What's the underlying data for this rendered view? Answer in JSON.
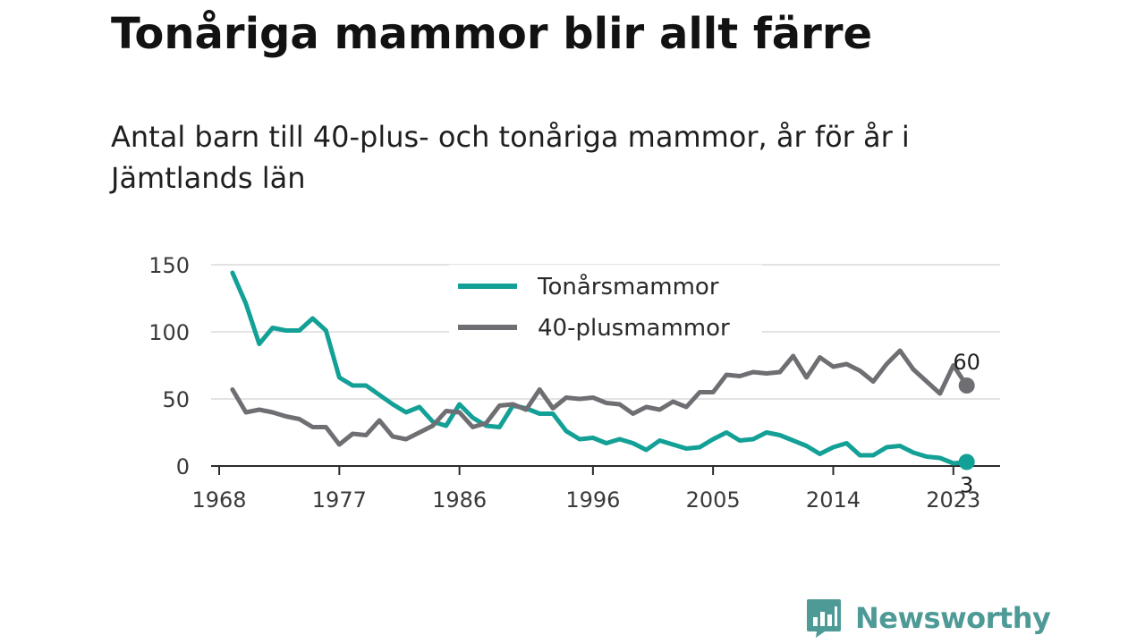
{
  "header": {
    "title": "Tonåriga mammor blir allt färre",
    "subtitle": "Antal barn till 40-plus- och tonåriga mammor, år för år i Jämtlands län"
  },
  "brand": {
    "name": "Newsworthy",
    "icon": "newsworthy-logo-icon",
    "color": "#4e9a96"
  },
  "chart_data": {
    "type": "line",
    "x": [
      1969,
      1970,
      1971,
      1972,
      1973,
      1974,
      1975,
      1976,
      1977,
      1978,
      1979,
      1980,
      1981,
      1982,
      1983,
      1984,
      1985,
      1986,
      1987,
      1988,
      1989,
      1990,
      1991,
      1992,
      1993,
      1994,
      1995,
      1996,
      1997,
      1998,
      1999,
      2000,
      2001,
      2002,
      2003,
      2004,
      2005,
      2006,
      2007,
      2008,
      2009,
      2010,
      2011,
      2012,
      2013,
      2014,
      2015,
      2016,
      2017,
      2018,
      2019,
      2020,
      2021,
      2022,
      2023,
      2024
    ],
    "series": [
      {
        "name": "Tonårsmammor",
        "color": "#13a096",
        "values": [
          144,
          121,
          91,
          103,
          101,
          101,
          110,
          101,
          66,
          60,
          60,
          53,
          46,
          40,
          44,
          33,
          30,
          46,
          36,
          30,
          29,
          45,
          43,
          39,
          39,
          26,
          20,
          21,
          17,
          20,
          17,
          12,
          19,
          16,
          13,
          14,
          20,
          25,
          19,
          20,
          25,
          23,
          19,
          15,
          9,
          14,
          17,
          8,
          8,
          14,
          15,
          10,
          7,
          6,
          2,
          3
        ]
      },
      {
        "name": "40-plusmammor",
        "color": "#6f6e73",
        "values": [
          57,
          40,
          42,
          40,
          37,
          35,
          29,
          29,
          16,
          24,
          23,
          34,
          22,
          20,
          25,
          30,
          41,
          40,
          29,
          32,
          45,
          46,
          42,
          57,
          43,
          51,
          50,
          51,
          47,
          46,
          39,
          44,
          42,
          48,
          44,
          55,
          55,
          68,
          67,
          70,
          69,
          70,
          82,
          66,
          81,
          74,
          76,
          71,
          63,
          76,
          86,
          72,
          63,
          54,
          75,
          60
        ]
      }
    ],
    "xticks": [
      1968,
      1977,
      1986,
      1996,
      2005,
      2014,
      2023
    ],
    "yticks": [
      0,
      50,
      100,
      150
    ],
    "ylim": [
      0,
      150
    ],
    "grid": true,
    "legend": "top-center",
    "end_labels": {
      "Tonårsmammor": "3",
      "40-plusmammor": "60"
    }
  }
}
